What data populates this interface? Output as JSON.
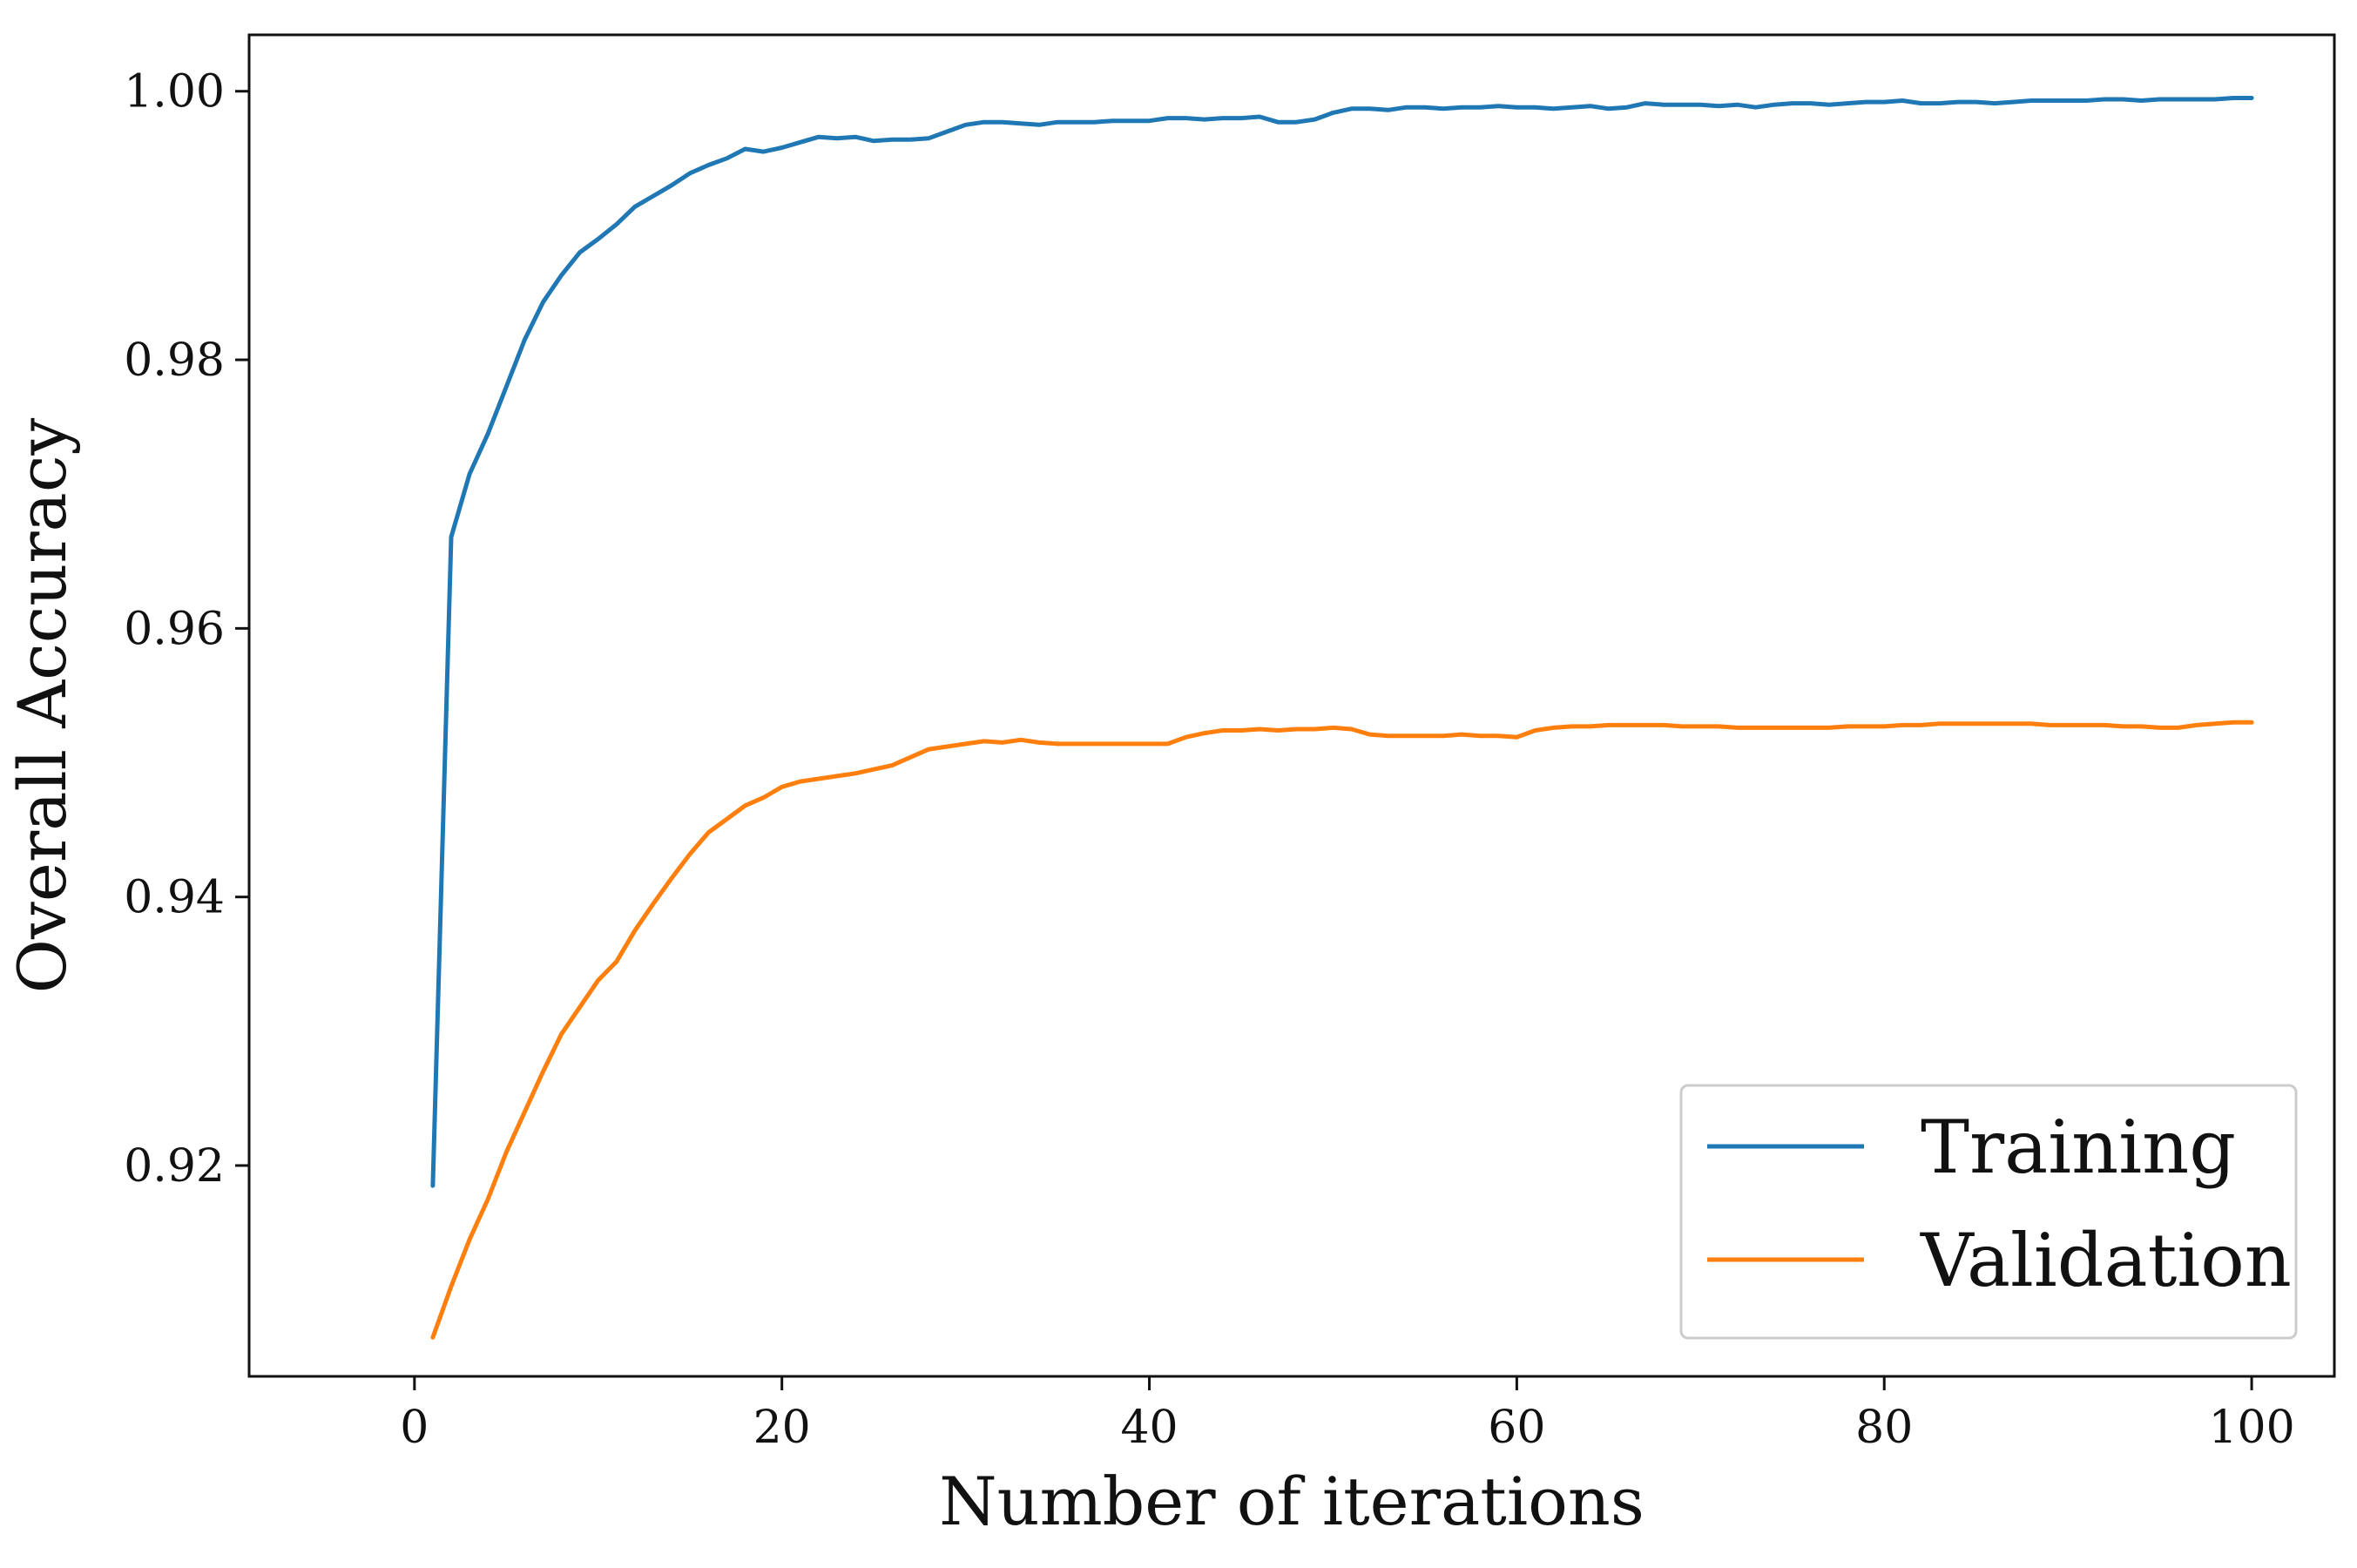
{
  "chart_data": {
    "type": "line",
    "title": "",
    "xlabel": "Number of iterations",
    "ylabel": "Overall Accuracy",
    "xlim": [
      -9,
      104.5
    ],
    "ylim": [
      0.9,
      0.9043,
      1.0042
    ],
    "xticks": [
      0,
      20,
      40,
      60,
      80,
      100
    ],
    "xtick_labels": [
      "0",
      "20",
      "40",
      "60",
      "80",
      "100"
    ],
    "yticks": [
      0.92,
      0.94,
      0.96,
      0.98,
      1.0
    ],
    "ytick_labels": [
      "0.92",
      "0.94",
      "0.96",
      "0.98",
      "1.00"
    ],
    "grid": false,
    "legend_position": "lower-right",
    "x": [
      1,
      2,
      3,
      4,
      5,
      6,
      7,
      8,
      9,
      10,
      11,
      12,
      13,
      14,
      15,
      16,
      17,
      18,
      19,
      20,
      21,
      22,
      23,
      24,
      25,
      26,
      27,
      28,
      29,
      30,
      31,
      32,
      33,
      34,
      35,
      36,
      37,
      38,
      39,
      40,
      41,
      42,
      43,
      44,
      45,
      46,
      47,
      48,
      49,
      50,
      51,
      52,
      53,
      54,
      55,
      56,
      57,
      58,
      59,
      60,
      61,
      62,
      63,
      64,
      65,
      66,
      67,
      68,
      69,
      70,
      71,
      72,
      73,
      74,
      75,
      76,
      77,
      78,
      79,
      80,
      81,
      82,
      83,
      84,
      85,
      86,
      87,
      88,
      89,
      90,
      91,
      92,
      93,
      94,
      95,
      96,
      97,
      98,
      99,
      100
    ],
    "series": [
      {
        "name": "Training",
        "color": "#1f77b4",
        "values": [
          0.9185,
          0.9668,
          0.9715,
          0.9745,
          0.978,
          0.9815,
          0.9843,
          0.9863,
          0.988,
          0.989,
          0.9901,
          0.9914,
          0.9922,
          0.993,
          0.9939,
          0.9945,
          0.995,
          0.9957,
          0.9955,
          0.9958,
          0.9962,
          0.9966,
          0.9965,
          0.9966,
          0.9963,
          0.9964,
          0.9964,
          0.9965,
          0.997,
          0.9975,
          0.9977,
          0.9977,
          0.9976,
          0.9975,
          0.9977,
          0.9977,
          0.9977,
          0.9978,
          0.9978,
          0.9978,
          0.998,
          0.998,
          0.9979,
          0.998,
          0.998,
          0.9981,
          0.9977,
          0.9977,
          0.9979,
          0.9984,
          0.9987,
          0.9987,
          0.9986,
          0.9988,
          0.9988,
          0.9987,
          0.9988,
          0.9988,
          0.9989,
          0.9988,
          0.9988,
          0.9987,
          0.9988,
          0.9989,
          0.9987,
          0.9988,
          0.9991,
          0.999,
          0.999,
          0.999,
          0.9989,
          0.999,
          0.9988,
          0.999,
          0.9991,
          0.9991,
          0.999,
          0.9991,
          0.9992,
          0.9992,
          0.9993,
          0.9991,
          0.9991,
          0.9992,
          0.9992,
          0.9991,
          0.9992,
          0.9993,
          0.9993,
          0.9993,
          0.9993,
          0.9994,
          0.9994,
          0.9993,
          0.9994,
          0.9994,
          0.9994,
          0.9994,
          0.9995,
          0.9995
        ]
      },
      {
        "name": "Validation",
        "color": "#ff7f0e",
        "values": [
          0.9072,
          0.911,
          0.9145,
          0.9175,
          0.921,
          0.924,
          0.927,
          0.9298,
          0.9318,
          0.9338,
          0.9352,
          0.9375,
          0.9395,
          0.9414,
          0.9432,
          0.9448,
          0.9458,
          0.9468,
          0.9474,
          0.9482,
          0.9486,
          0.9488,
          0.949,
          0.9492,
          0.9495,
          0.9498,
          0.9504,
          0.951,
          0.9512,
          0.9514,
          0.9516,
          0.9515,
          0.9517,
          0.9515,
          0.9514,
          0.9514,
          0.9514,
          0.9514,
          0.9514,
          0.9514,
          0.9514,
          0.9519,
          0.9522,
          0.9524,
          0.9524,
          0.9525,
          0.9524,
          0.9525,
          0.9525,
          0.9526,
          0.9525,
          0.9521,
          0.952,
          0.952,
          0.952,
          0.952,
          0.9521,
          0.952,
          0.952,
          0.9519,
          0.9524,
          0.9526,
          0.9527,
          0.9527,
          0.9528,
          0.9528,
          0.9528,
          0.9528,
          0.9527,
          0.9527,
          0.9527,
          0.9526,
          0.9526,
          0.9526,
          0.9526,
          0.9526,
          0.9526,
          0.9527,
          0.9527,
          0.9527,
          0.9528,
          0.9528,
          0.9529,
          0.9529,
          0.9529,
          0.9529,
          0.9529,
          0.9529,
          0.9528,
          0.9528,
          0.9528,
          0.9528,
          0.9527,
          0.9527,
          0.9526,
          0.9526,
          0.9528,
          0.9529,
          0.953,
          0.953
        ]
      }
    ]
  }
}
